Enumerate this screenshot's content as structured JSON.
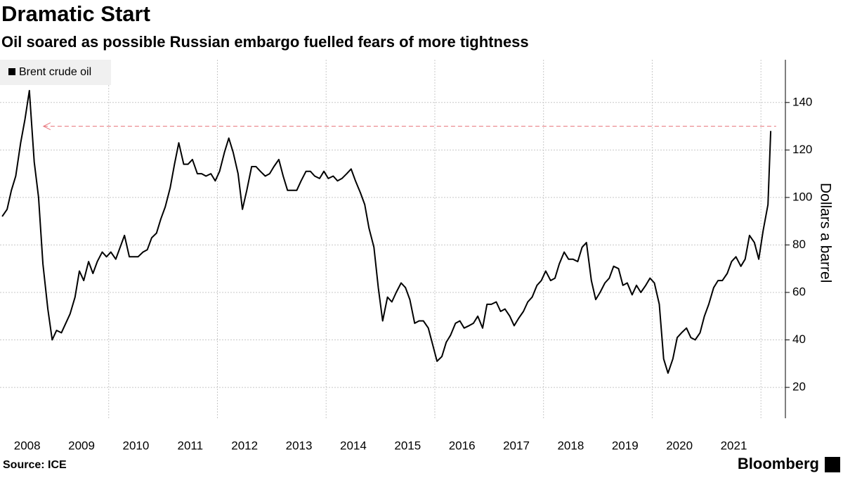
{
  "chart_data": {
    "type": "line",
    "title": "Dramatic Start",
    "subtitle": "Oil soared as possible Russian embargo fuelled fears of more tightness",
    "y_label": "Dollars a barrel",
    "source": "Source: ICE",
    "brand": "Bloomberg",
    "xlim": [
      2008,
      2022.45
    ],
    "ylim": [
      7,
      158
    ],
    "xticks": [
      2008,
      2009,
      2010,
      2011,
      2012,
      2013,
      2014,
      2015,
      2016,
      2017,
      2018,
      2019,
      2020,
      2021
    ],
    "yticks": [
      20,
      40,
      60,
      80,
      100,
      120,
      140
    ],
    "grid": true,
    "legend": "top-left",
    "reference": {
      "y": 130,
      "x": [
        2008.8,
        2022.28
      ],
      "color": "#e8737a"
    },
    "x": [
      2008.04,
      2008.13,
      2008.21,
      2008.29,
      2008.38,
      2008.46,
      2008.54,
      2008.63,
      2008.71,
      2008.79,
      2008.88,
      2008.96,
      2009.04,
      2009.13,
      2009.21,
      2009.29,
      2009.38,
      2009.46,
      2009.54,
      2009.63,
      2009.71,
      2009.79,
      2009.88,
      2009.96,
      2010.04,
      2010.13,
      2010.21,
      2010.29,
      2010.38,
      2010.46,
      2010.54,
      2010.63,
      2010.71,
      2010.79,
      2010.88,
      2010.96,
      2011.04,
      2011.13,
      2011.21,
      2011.29,
      2011.38,
      2011.46,
      2011.54,
      2011.63,
      2011.71,
      2011.79,
      2011.88,
      2011.96,
      2012.04,
      2012.13,
      2012.21,
      2012.29,
      2012.38,
      2012.46,
      2012.54,
      2012.63,
      2012.71,
      2012.79,
      2012.88,
      2012.96,
      2013.04,
      2013.13,
      2013.21,
      2013.29,
      2013.38,
      2013.46,
      2013.54,
      2013.63,
      2013.71,
      2013.79,
      2013.88,
      2013.96,
      2014.04,
      2014.13,
      2014.21,
      2014.29,
      2014.38,
      2014.46,
      2014.54,
      2014.63,
      2014.71,
      2014.79,
      2014.88,
      2014.96,
      2015.04,
      2015.13,
      2015.21,
      2015.29,
      2015.38,
      2015.46,
      2015.54,
      2015.63,
      2015.71,
      2015.79,
      2015.88,
      2015.96,
      2016.04,
      2016.13,
      2016.21,
      2016.29,
      2016.38,
      2016.46,
      2016.54,
      2016.63,
      2016.71,
      2016.79,
      2016.88,
      2016.96,
      2017.04,
      2017.13,
      2017.21,
      2017.29,
      2017.38,
      2017.46,
      2017.54,
      2017.63,
      2017.71,
      2017.79,
      2017.88,
      2017.96,
      2018.04,
      2018.13,
      2018.21,
      2018.29,
      2018.38,
      2018.46,
      2018.54,
      2018.63,
      2018.71,
      2018.79,
      2018.88,
      2018.96,
      2019.04,
      2019.13,
      2019.21,
      2019.29,
      2019.38,
      2019.46,
      2019.54,
      2019.63,
      2019.71,
      2019.79,
      2019.88,
      2019.96,
      2020.04,
      2020.13,
      2020.21,
      2020.29,
      2020.38,
      2020.46,
      2020.54,
      2020.63,
      2020.71,
      2020.79,
      2020.88,
      2020.96,
      2021.04,
      2021.13,
      2021.21,
      2021.29,
      2021.38,
      2021.46,
      2021.54,
      2021.63,
      2021.71,
      2021.79,
      2021.88,
      2021.96,
      2022.04,
      2022.13,
      2022.18
    ],
    "series": [
      {
        "name": "Brent crude oil",
        "color": "#000000",
        "values": [
          92,
          95,
          103,
          109,
          123,
          133,
          145,
          115,
          100,
          72,
          53,
          40,
          44,
          43,
          47,
          51,
          58,
          69,
          65,
          73,
          68,
          73,
          77,
          75,
          77,
          74,
          79,
          84,
          75,
          75,
          75,
          77,
          78,
          83,
          85,
          91,
          96,
          104,
          114,
          123,
          114,
          114,
          116,
          110,
          110,
          109,
          110,
          107,
          111,
          119,
          125,
          119,
          110,
          95,
          103,
          113,
          113,
          111,
          109,
          110,
          113,
          116,
          109,
          103,
          103,
          103,
          107,
          111,
          111,
          109,
          108,
          111,
          108,
          109,
          107,
          108,
          110,
          112,
          107,
          102,
          97,
          87,
          79,
          62,
          48,
          58,
          56,
          60,
          64,
          62,
          57,
          47,
          48,
          48,
          45,
          38,
          31,
          33,
          39,
          42,
          47,
          48,
          45,
          46,
          47,
          50,
          45,
          55,
          55,
          56,
          52,
          53,
          50,
          46,
          49,
          52,
          56,
          58,
          63,
          65,
          69,
          65,
          66,
          72,
          77,
          74,
          74,
          73,
          79,
          81,
          65,
          57,
          60,
          64,
          66,
          71,
          70,
          63,
          64,
          59,
          63,
          60,
          63,
          66,
          64,
          55,
          32,
          26,
          32,
          41,
          43,
          45,
          41,
          40,
          43,
          50,
          55,
          62,
          65,
          65,
          68,
          73,
          75,
          71,
          74,
          84,
          81,
          74,
          86,
          97,
          128
        ]
      }
    ]
  }
}
